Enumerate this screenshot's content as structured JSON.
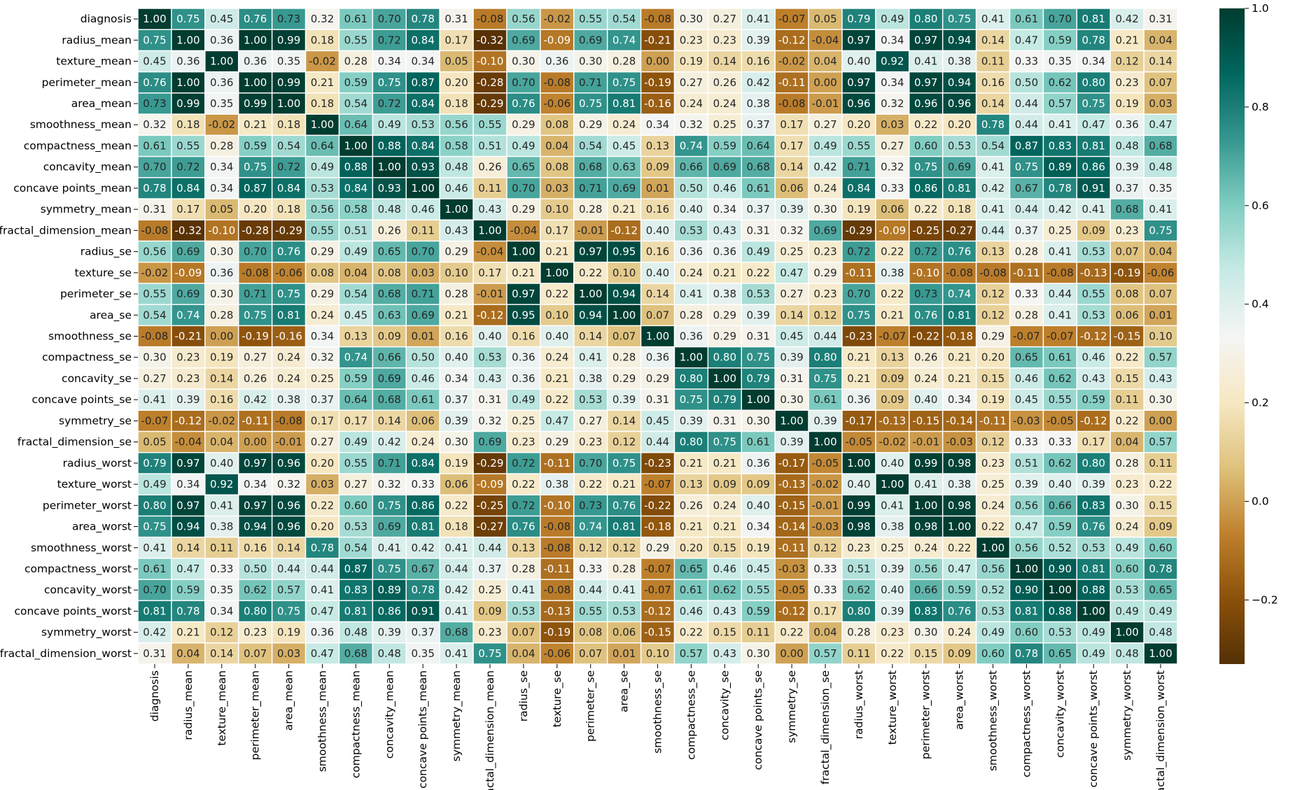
{
  "chart_data": {
    "type": "heatmap",
    "colormap": "BrBG",
    "vmin": -0.33,
    "vmax": 1.0,
    "annotation_format": "2 decimals",
    "labels": [
      "diagnosis",
      "radius_mean",
      "texture_mean",
      "perimeter_mean",
      "area_mean",
      "smoothness_mean",
      "compactness_mean",
      "concavity_mean",
      "concave points_mean",
      "symmetry_mean",
      "fractal_dimension_mean",
      "radius_se",
      "texture_se",
      "perimeter_se",
      "area_se",
      "smoothness_se",
      "compactness_se",
      "concavity_se",
      "concave points_se",
      "symmetry_se",
      "fractal_dimension_se",
      "radius_worst",
      "texture_worst",
      "perimeter_worst",
      "area_worst",
      "smoothness_worst",
      "compactness_worst",
      "concavity_worst",
      "concave points_worst",
      "symmetry_worst",
      "fractal_dimension_worst"
    ],
    "matrix": [
      [
        1.0,
        0.75,
        0.45,
        0.76,
        0.73,
        0.32,
        0.61,
        0.7,
        0.78,
        0.31,
        -0.08,
        0.56,
        -0.02,
        0.55,
        0.54,
        -0.08,
        0.3,
        0.27,
        0.41,
        -0.07,
        0.05,
        0.79,
        0.49,
        0.8,
        0.75,
        0.41,
        0.61,
        0.7,
        0.81,
        0.42,
        0.31
      ],
      [
        0.75,
        1.0,
        0.36,
        1.0,
        0.99,
        0.18,
        0.55,
        0.72,
        0.84,
        0.17,
        -0.32,
        0.69,
        -0.09,
        0.69,
        0.74,
        -0.21,
        0.23,
        0.23,
        0.39,
        -0.12,
        -0.04,
        0.97,
        0.34,
        0.97,
        0.94,
        0.14,
        0.47,
        0.59,
        0.78,
        0.21,
        0.04
      ],
      [
        0.45,
        0.36,
        1.0,
        0.36,
        0.35,
        -0.02,
        0.28,
        0.34,
        0.34,
        0.05,
        -0.1,
        0.3,
        0.36,
        0.3,
        0.28,
        -0.0,
        0.19,
        0.14,
        0.16,
        -0.02,
        0.04,
        0.4,
        0.92,
        0.41,
        0.38,
        0.11,
        0.33,
        0.35,
        0.34,
        0.12,
        0.14
      ],
      [
        0.76,
        1.0,
        0.36,
        1.0,
        0.99,
        0.21,
        0.59,
        0.75,
        0.87,
        0.2,
        -0.28,
        0.7,
        -0.08,
        0.71,
        0.75,
        -0.19,
        0.27,
        0.26,
        0.42,
        -0.11,
        -0.0,
        0.97,
        0.34,
        0.97,
        0.94,
        0.16,
        0.5,
        0.62,
        0.8,
        0.23,
        0.07
      ],
      [
        0.73,
        0.99,
        0.35,
        0.99,
        1.0,
        0.18,
        0.54,
        0.72,
        0.84,
        0.18,
        -0.29,
        0.76,
        -0.06,
        0.75,
        0.81,
        -0.16,
        0.24,
        0.24,
        0.38,
        -0.08,
        -0.01,
        0.96,
        0.32,
        0.96,
        0.96,
        0.14,
        0.44,
        0.57,
        0.75,
        0.19,
        0.03
      ],
      [
        0.32,
        0.18,
        -0.02,
        0.21,
        0.18,
        1.0,
        0.64,
        0.49,
        0.53,
        0.56,
        0.55,
        0.29,
        0.08,
        0.29,
        0.24,
        0.34,
        0.32,
        0.25,
        0.37,
        0.17,
        0.27,
        0.2,
        0.03,
        0.22,
        0.2,
        0.78,
        0.44,
        0.41,
        0.47,
        0.36,
        0.47
      ],
      [
        0.61,
        0.55,
        0.28,
        0.59,
        0.54,
        0.64,
        1.0,
        0.88,
        0.84,
        0.58,
        0.51,
        0.49,
        0.04,
        0.54,
        0.45,
        0.13,
        0.74,
        0.59,
        0.64,
        0.17,
        0.49,
        0.55,
        0.27,
        0.6,
        0.53,
        0.54,
        0.87,
        0.83,
        0.81,
        0.48,
        0.68
      ],
      [
        0.7,
        0.72,
        0.34,
        0.75,
        0.72,
        0.49,
        0.88,
        1.0,
        0.93,
        0.48,
        0.26,
        0.65,
        0.08,
        0.68,
        0.63,
        0.09,
        0.66,
        0.69,
        0.68,
        0.14,
        0.42,
        0.71,
        0.32,
        0.75,
        0.69,
        0.41,
        0.75,
        0.89,
        0.86,
        0.39,
        0.48
      ],
      [
        0.78,
        0.84,
        0.34,
        0.87,
        0.84,
        0.53,
        0.84,
        0.93,
        1.0,
        0.46,
        0.11,
        0.7,
        0.03,
        0.71,
        0.69,
        0.01,
        0.5,
        0.46,
        0.61,
        0.06,
        0.24,
        0.84,
        0.33,
        0.86,
        0.81,
        0.42,
        0.67,
        0.78,
        0.91,
        0.37,
        0.35
      ],
      [
        0.31,
        0.17,
        0.05,
        0.2,
        0.18,
        0.56,
        0.58,
        0.48,
        0.46,
        1.0,
        0.43,
        0.29,
        0.1,
        0.28,
        0.21,
        0.16,
        0.4,
        0.34,
        0.37,
        0.39,
        0.3,
        0.19,
        0.06,
        0.22,
        0.18,
        0.41,
        0.44,
        0.42,
        0.41,
        0.68,
        0.41
      ],
      [
        -0.08,
        -0.32,
        -0.1,
        -0.28,
        -0.29,
        0.55,
        0.51,
        0.26,
        0.11,
        0.43,
        1.0,
        -0.04,
        0.17,
        -0.01,
        -0.12,
        0.4,
        0.53,
        0.43,
        0.31,
        0.32,
        0.69,
        -0.29,
        -0.09,
        -0.25,
        -0.27,
        0.44,
        0.37,
        0.25,
        0.09,
        0.23,
        0.75
      ],
      [
        0.56,
        0.69,
        0.3,
        0.7,
        0.76,
        0.29,
        0.49,
        0.65,
        0.7,
        0.29,
        -0.04,
        1.0,
        0.21,
        0.97,
        0.95,
        0.16,
        0.36,
        0.36,
        0.49,
        0.25,
        0.23,
        0.72,
        0.22,
        0.72,
        0.76,
        0.13,
        0.28,
        0.41,
        0.53,
        0.07,
        0.04
      ],
      [
        -0.02,
        -0.09,
        0.36,
        -0.08,
        -0.06,
        0.08,
        0.04,
        0.08,
        0.03,
        0.1,
        0.17,
        0.21,
        1.0,
        0.22,
        0.1,
        0.4,
        0.24,
        0.21,
        0.22,
        0.47,
        0.29,
        -0.11,
        0.38,
        -0.1,
        -0.08,
        -0.08,
        -0.11,
        -0.08,
        -0.13,
        -0.19,
        -0.06
      ],
      [
        0.55,
        0.69,
        0.3,
        0.71,
        0.75,
        0.29,
        0.54,
        0.68,
        0.71,
        0.28,
        -0.01,
        0.97,
        0.22,
        1.0,
        0.94,
        0.14,
        0.41,
        0.38,
        0.53,
        0.27,
        0.23,
        0.7,
        0.22,
        0.73,
        0.74,
        0.12,
        0.33,
        0.44,
        0.55,
        0.08,
        0.07
      ],
      [
        0.54,
        0.74,
        0.28,
        0.75,
        0.81,
        0.24,
        0.45,
        0.63,
        0.69,
        0.21,
        -0.12,
        0.95,
        0.1,
        0.94,
        1.0,
        0.07,
        0.28,
        0.29,
        0.39,
        0.14,
        0.12,
        0.75,
        0.21,
        0.76,
        0.81,
        0.12,
        0.28,
        0.41,
        0.53,
        0.06,
        0.01
      ],
      [
        -0.08,
        -0.21,
        -0.0,
        -0.19,
        -0.16,
        0.34,
        0.13,
        0.09,
        0.01,
        0.16,
        0.4,
        0.16,
        0.4,
        0.14,
        0.07,
        1.0,
        0.36,
        0.29,
        0.31,
        0.45,
        0.44,
        -0.23,
        -0.07,
        -0.22,
        -0.18,
        0.29,
        -0.07,
        -0.07,
        -0.12,
        -0.15,
        0.1
      ],
      [
        0.3,
        0.23,
        0.19,
        0.27,
        0.24,
        0.32,
        0.74,
        0.66,
        0.5,
        0.4,
        0.53,
        0.36,
        0.24,
        0.41,
        0.28,
        0.36,
        1.0,
        0.8,
        0.75,
        0.39,
        0.8,
        0.21,
        0.13,
        0.26,
        0.21,
        0.2,
        0.65,
        0.61,
        0.46,
        0.22,
        0.57
      ],
      [
        0.27,
        0.23,
        0.14,
        0.26,
        0.24,
        0.25,
        0.59,
        0.69,
        0.46,
        0.34,
        0.43,
        0.36,
        0.21,
        0.38,
        0.29,
        0.29,
        0.8,
        1.0,
        0.79,
        0.31,
        0.75,
        0.21,
        0.09,
        0.24,
        0.21,
        0.15,
        0.46,
        0.62,
        0.43,
        0.15,
        0.43
      ],
      [
        0.41,
        0.39,
        0.16,
        0.42,
        0.38,
        0.37,
        0.64,
        0.68,
        0.61,
        0.37,
        0.31,
        0.49,
        0.22,
        0.53,
        0.39,
        0.31,
        0.75,
        0.79,
        1.0,
        0.3,
        0.61,
        0.36,
        0.09,
        0.4,
        0.34,
        0.19,
        0.45,
        0.55,
        0.59,
        0.11,
        0.3
      ],
      [
        -0.07,
        -0.12,
        -0.02,
        -0.11,
        -0.08,
        0.17,
        0.17,
        0.14,
        0.06,
        0.39,
        0.32,
        0.25,
        0.47,
        0.27,
        0.14,
        0.45,
        0.39,
        0.31,
        0.3,
        1.0,
        0.39,
        -0.17,
        -0.13,
        -0.15,
        -0.14,
        -0.11,
        -0.03,
        -0.05,
        -0.12,
        0.22,
        0.0
      ],
      [
        0.05,
        -0.04,
        0.04,
        -0.0,
        -0.01,
        0.27,
        0.49,
        0.42,
        0.24,
        0.3,
        0.69,
        0.23,
        0.29,
        0.23,
        0.12,
        0.44,
        0.8,
        0.75,
        0.61,
        0.39,
        1.0,
        -0.05,
        -0.02,
        -0.01,
        -0.03,
        0.12,
        0.33,
        0.33,
        0.17,
        0.04,
        0.57
      ],
      [
        0.79,
        0.97,
        0.4,
        0.97,
        0.96,
        0.2,
        0.55,
        0.71,
        0.84,
        0.19,
        -0.29,
        0.72,
        -0.11,
        0.7,
        0.75,
        -0.23,
        0.21,
        0.21,
        0.36,
        -0.17,
        -0.05,
        1.0,
        0.4,
        0.99,
        0.98,
        0.23,
        0.51,
        0.62,
        0.8,
        0.28,
        0.11
      ],
      [
        0.49,
        0.34,
        0.92,
        0.34,
        0.32,
        0.03,
        0.27,
        0.32,
        0.33,
        0.06,
        -0.09,
        0.22,
        0.38,
        0.22,
        0.21,
        -0.07,
        0.13,
        0.09,
        0.09,
        -0.13,
        -0.02,
        0.4,
        1.0,
        0.41,
        0.38,
        0.25,
        0.39,
        0.4,
        0.39,
        0.23,
        0.22
      ],
      [
        0.8,
        0.97,
        0.41,
        0.97,
        0.96,
        0.22,
        0.6,
        0.75,
        0.86,
        0.22,
        -0.25,
        0.72,
        -0.1,
        0.73,
        0.76,
        -0.22,
        0.26,
        0.24,
        0.4,
        -0.15,
        -0.01,
        0.99,
        0.41,
        1.0,
        0.98,
        0.24,
        0.56,
        0.66,
        0.83,
        0.3,
        0.15
      ],
      [
        0.75,
        0.94,
        0.38,
        0.94,
        0.96,
        0.2,
        0.53,
        0.69,
        0.81,
        0.18,
        -0.27,
        0.76,
        -0.08,
        0.74,
        0.81,
        -0.18,
        0.21,
        0.21,
        0.34,
        -0.14,
        -0.03,
        0.98,
        0.38,
        0.98,
        1.0,
        0.22,
        0.47,
        0.59,
        0.76,
        0.24,
        0.09
      ],
      [
        0.41,
        0.14,
        0.11,
        0.16,
        0.14,
        0.78,
        0.54,
        0.41,
        0.42,
        0.41,
        0.44,
        0.13,
        -0.08,
        0.12,
        0.12,
        0.29,
        0.2,
        0.15,
        0.19,
        -0.11,
        0.12,
        0.23,
        0.25,
        0.24,
        0.22,
        1.0,
        0.56,
        0.52,
        0.53,
        0.49,
        0.6
      ],
      [
        0.61,
        0.47,
        0.33,
        0.5,
        0.44,
        0.44,
        0.87,
        0.75,
        0.67,
        0.44,
        0.37,
        0.28,
        -0.11,
        0.33,
        0.28,
        -0.07,
        0.65,
        0.46,
        0.45,
        -0.03,
        0.33,
        0.51,
        0.39,
        0.56,
        0.47,
        0.56,
        1.0,
        0.9,
        0.81,
        0.6,
        0.78
      ],
      [
        0.7,
        0.59,
        0.35,
        0.62,
        0.57,
        0.41,
        0.83,
        0.89,
        0.78,
        0.42,
        0.25,
        0.41,
        -0.08,
        0.44,
        0.41,
        -0.07,
        0.61,
        0.62,
        0.55,
        -0.05,
        0.33,
        0.62,
        0.4,
        0.66,
        0.59,
        0.52,
        0.9,
        1.0,
        0.88,
        0.53,
        0.65
      ],
      [
        0.81,
        0.78,
        0.34,
        0.8,
        0.75,
        0.47,
        0.81,
        0.86,
        0.91,
        0.41,
        0.09,
        0.53,
        -0.13,
        0.55,
        0.53,
        -0.12,
        0.46,
        0.43,
        0.59,
        -0.12,
        0.17,
        0.8,
        0.39,
        0.83,
        0.76,
        0.53,
        0.81,
        0.88,
        1.0,
        0.49,
        0.49
      ],
      [
        0.42,
        0.21,
        0.12,
        0.23,
        0.19,
        0.36,
        0.48,
        0.39,
        0.37,
        0.68,
        0.23,
        0.07,
        -0.19,
        0.08,
        0.06,
        -0.15,
        0.22,
        0.15,
        0.11,
        0.22,
        0.04,
        0.28,
        0.23,
        0.3,
        0.24,
        0.49,
        0.6,
        0.53,
        0.49,
        1.0,
        0.48
      ],
      [
        0.31,
        0.04,
        0.14,
        0.07,
        0.03,
        0.47,
        0.68,
        0.48,
        0.35,
        0.41,
        0.75,
        0.04,
        -0.06,
        0.07,
        0.01,
        0.1,
        0.57,
        0.43,
        0.3,
        0.0,
        0.57,
        0.11,
        0.22,
        0.15,
        0.09,
        0.6,
        0.78,
        0.65,
        0.49,
        0.48,
        1.0
      ]
    ],
    "colorbar": {
      "ticks": [
        -0.2,
        0.0,
        0.2,
        0.4,
        0.6,
        0.8,
        1.0
      ],
      "tick_labels": [
        "−0.2",
        "0.0",
        "0.2",
        "0.4",
        "0.6",
        "0.8",
        "1.0"
      ]
    },
    "title": "",
    "xlabel": "",
    "ylabel": ""
  }
}
